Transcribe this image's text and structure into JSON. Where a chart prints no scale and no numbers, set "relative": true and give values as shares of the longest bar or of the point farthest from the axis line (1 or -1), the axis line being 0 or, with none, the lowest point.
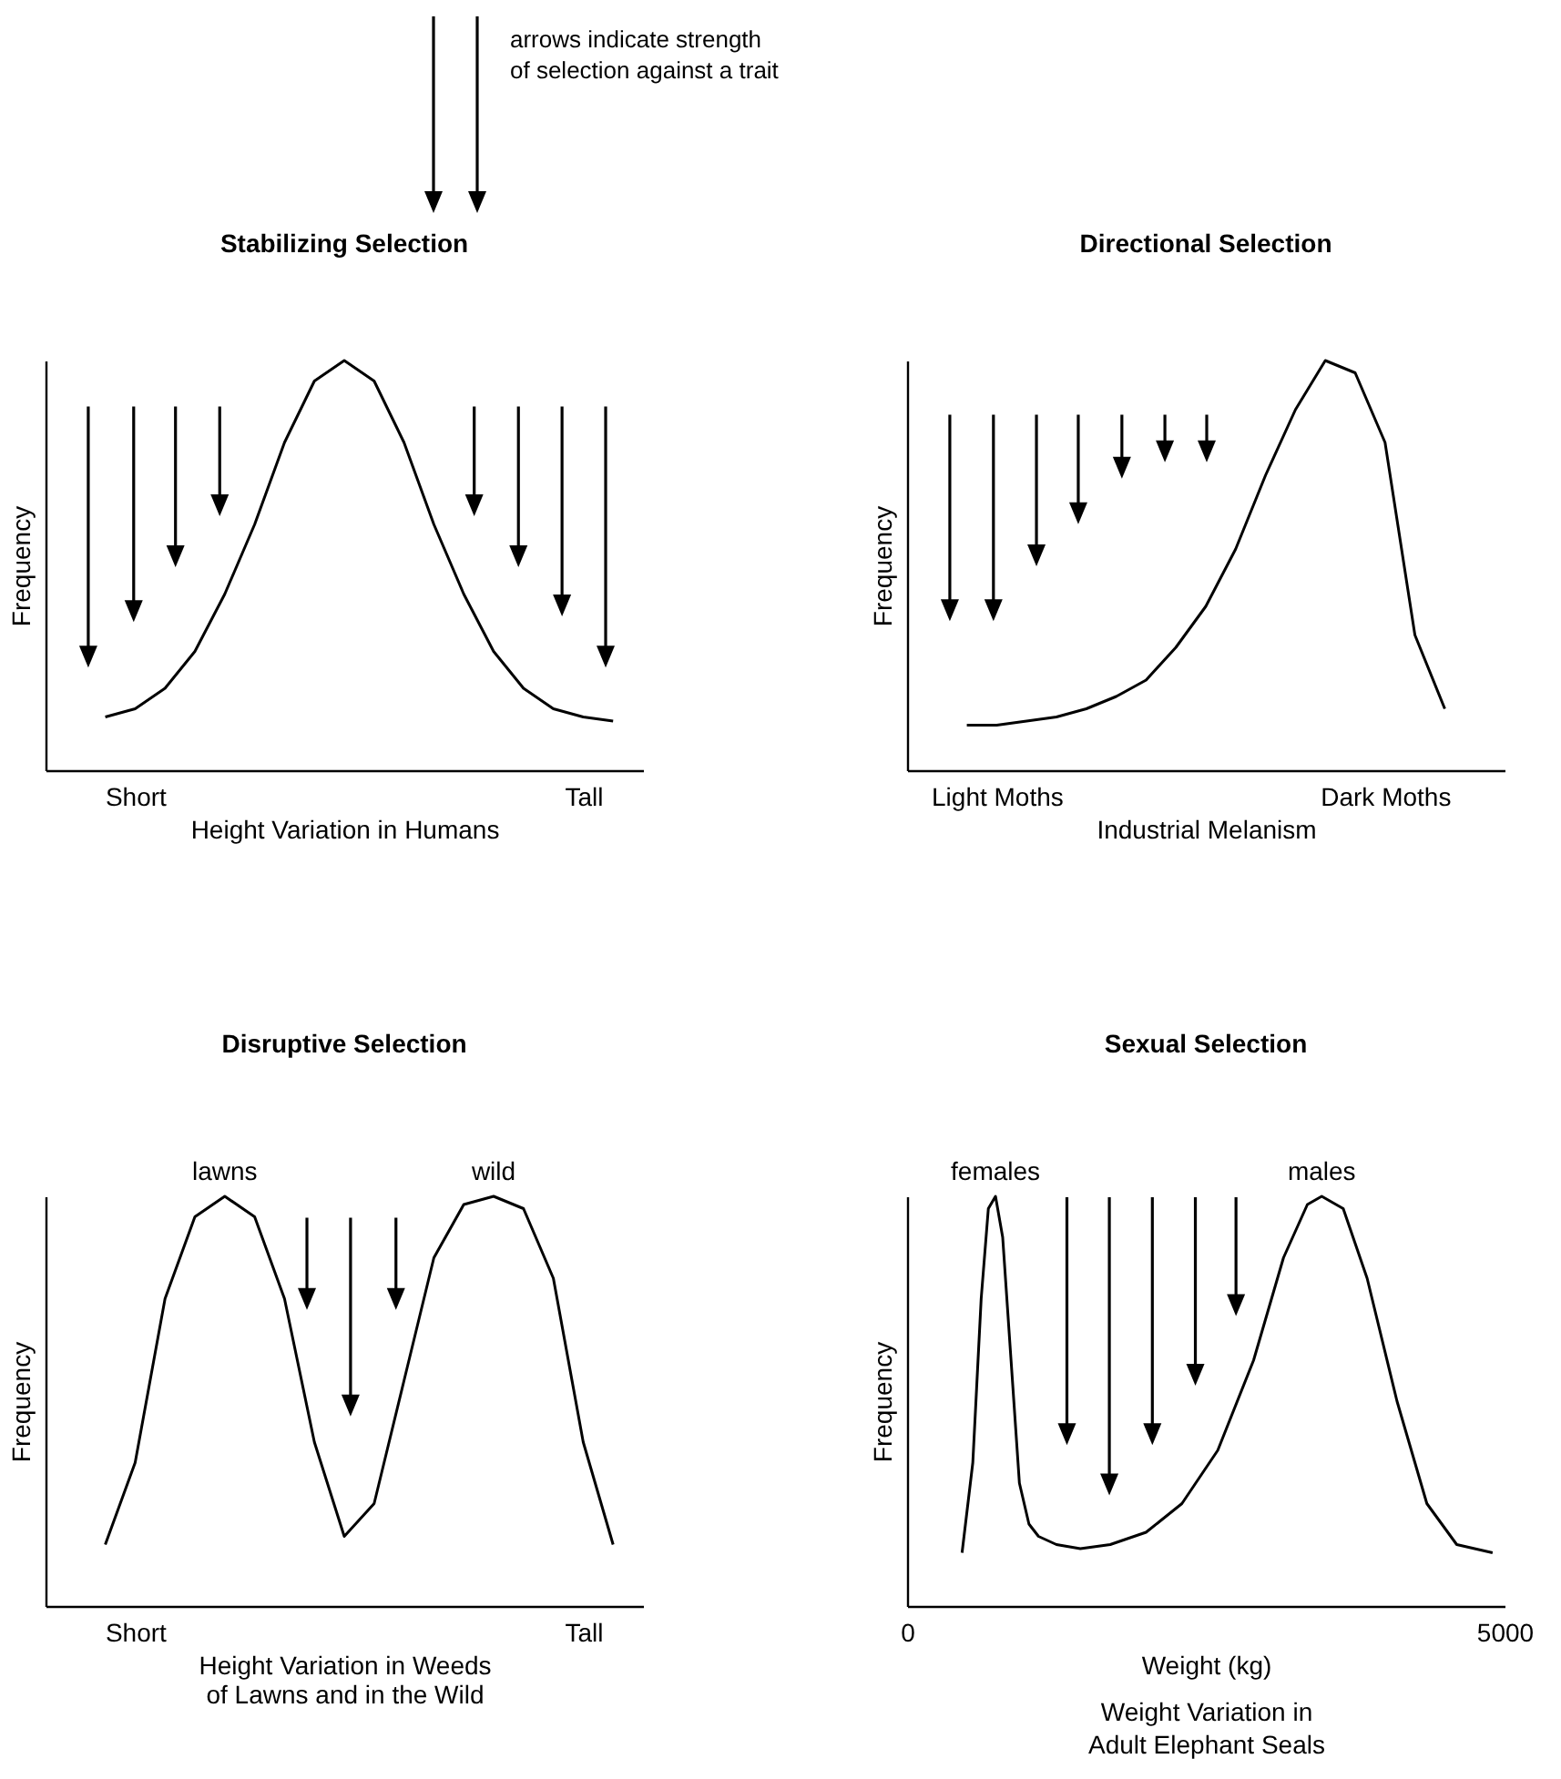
{
  "chart_data": [
    {
      "type": "other",
      "annotations": [
        "arrows indicate strength of selection against a trait"
      ]
    },
    {
      "type": "line",
      "title": "Stabilizing Selection",
      "xlabel": "Height Variation in Humans",
      "ylabel": "Frequency",
      "relative": true,
      "categories": [
        null,
        null,
        null,
        "Short",
        null,
        null,
        null,
        null,
        null,
        null,
        null,
        null,
        null,
        null,
        null,
        null,
        null,
        null,
        "Tall",
        null,
        null
      ],
      "series": [
        {
          "color": "#000000",
          "values": [
            null,
            null,
            0.13,
            0.15,
            0.2,
            0.29,
            0.43,
            0.6,
            0.8,
            0.95,
            1,
            0.95,
            0.8,
            0.6,
            0.43,
            0.29,
            0.2,
            0.15,
            0.13,
            0.12,
            null
          ]
        }
      ]
    },
    {
      "type": "line",
      "title": "Directional Selection",
      "xlabel": "Industrial Melanism",
      "ylabel": "Frequency",
      "relative": true,
      "categories": [
        null,
        null,
        null,
        "Light Moths",
        null,
        null,
        null,
        null,
        null,
        null,
        null,
        null,
        null,
        null,
        null,
        null,
        "Dark Moths",
        null,
        null,
        null,
        null
      ],
      "series": [
        {
          "color": "#000000",
          "values": [
            null,
            null,
            0.11,
            0.11,
            0.12,
            0.13,
            0.15,
            0.18,
            0.22,
            0.3,
            0.4,
            0.54,
            0.72,
            0.88,
            1,
            0.97,
            0.8,
            0.33,
            0.15,
            null,
            null
          ]
        }
      ]
    },
    {
      "type": "line",
      "title": "Disruptive Selection",
      "xlabel": "Height Variation in Weeds\nof Lawns and in the Wild",
      "ylabel": "Frequency",
      "relative": true,
      "categories": [
        null,
        null,
        null,
        "Short",
        null,
        null,
        null,
        null,
        null,
        null,
        null,
        null,
        null,
        null,
        null,
        null,
        null,
        null,
        "Tall",
        null,
        null
      ],
      "annotations": [
        {
          "text": "lawns",
          "y": 1
        },
        {
          "text": "wild",
          "y": 1
        }
      ],
      "series": [
        {
          "color": "#000000",
          "values": [
            null,
            null,
            0.15,
            0.35,
            0.75,
            0.95,
            1,
            0.95,
            0.75,
            0.4,
            0.17,
            0.25,
            0.55,
            0.85,
            0.98,
            1,
            0.97,
            0.8,
            0.4,
            0.15,
            null
          ]
        }
      ]
    },
    {
      "type": "line",
      "title": "Sexual Selection",
      "xlabel": "Weight (kg)",
      "ylabel": "Frequency",
      "relative": true,
      "xlim": [
        0,
        5000
      ],
      "xticks": [
        0,
        5000
      ],
      "annotations": [
        {
          "text": "females",
          "x": 740,
          "y": 1
        },
        {
          "text": "males",
          "x": 3470,
          "y": 1
        },
        "Weight Variation in\nAdult Elephant Seals"
      ],
      "x": [
        460,
        550,
        620,
        680,
        740,
        800,
        870,
        940,
        1020,
        1100,
        1250,
        1450,
        1700,
        2000,
        2300,
        2600,
        2900,
        3150,
        3350,
        3470,
        3650,
        3850,
        4100,
        4350,
        4600,
        4900
      ],
      "series": [
        {
          "color": "#000000",
          "values": [
            0.13,
            0.35,
            0.75,
            0.97,
            1,
            0.9,
            0.6,
            0.3,
            0.2,
            0.17,
            0.15,
            0.14,
            0.15,
            0.18,
            0.25,
            0.38,
            0.6,
            0.85,
            0.98,
            1,
            0.97,
            0.8,
            0.5,
            0.25,
            0.15,
            0.13
          ]
        }
      ]
    }
  ]
}
